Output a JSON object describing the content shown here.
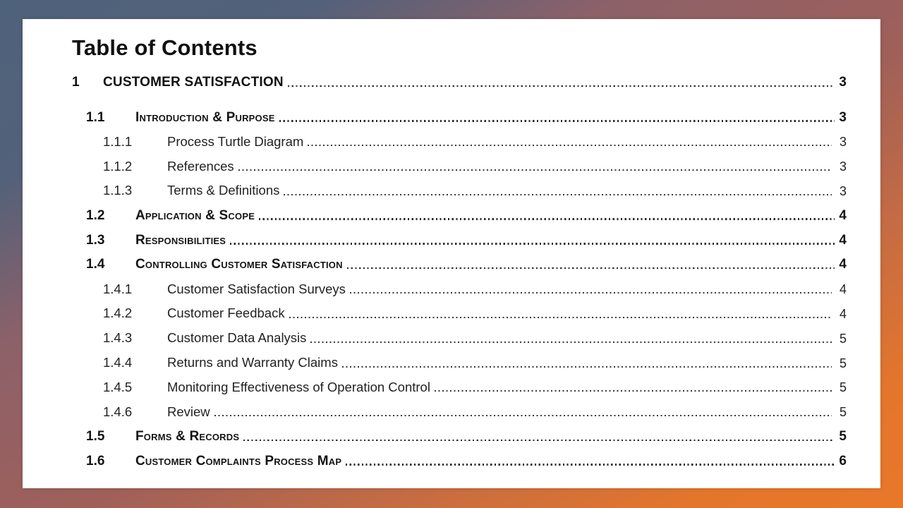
{
  "document": {
    "title": "Table of Contents",
    "entries": [
      {
        "number": "1",
        "label": "Customer Satisfaction",
        "page": "3",
        "level": 1
      },
      {
        "number": "1.1",
        "label": "Introduction & Purpose",
        "page": "3",
        "level": 2
      },
      {
        "number": "1.1.1",
        "label": "Process Turtle Diagram",
        "page": "3",
        "level": 3
      },
      {
        "number": "1.1.2",
        "label": "References",
        "page": "3",
        "level": 3
      },
      {
        "number": "1.1.3",
        "label": "Terms & Definitions",
        "page": "3",
        "level": 3
      },
      {
        "number": "1.2",
        "label": "Application & Scope",
        "page": "4",
        "level": 2
      },
      {
        "number": "1.3",
        "label": "Responsibilities",
        "page": "4",
        "level": 2
      },
      {
        "number": "1.4",
        "label": "Controlling Customer Satisfaction",
        "page": "4",
        "level": 2
      },
      {
        "number": "1.4.1",
        "label": "Customer Satisfaction Surveys",
        "page": "4",
        "level": 3
      },
      {
        "number": "1.4.2",
        "label": "Customer Feedback",
        "page": "4",
        "level": 3
      },
      {
        "number": "1.4.3",
        "label": "Customer Data Analysis",
        "page": "5",
        "level": 3
      },
      {
        "number": "1.4.4",
        "label": "Returns and Warranty Claims",
        "page": "5",
        "level": 3
      },
      {
        "number": "1.4.5",
        "label": "Monitoring Effectiveness of Operation Control",
        "page": "5",
        "level": 3
      },
      {
        "number": "1.4.6",
        "label": "Review",
        "page": "5",
        "level": 3
      },
      {
        "number": "1.5",
        "label": "Forms & Records",
        "page": "5",
        "level": 2
      },
      {
        "number": "1.6",
        "label": "Customer Complaints Process Map",
        "page": "6",
        "level": 2
      }
    ]
  },
  "colors": {
    "background_gradient_start": "#2b6681",
    "background_gradient_mid": "#a06059",
    "background_gradient_end": "#e8772a",
    "page_background": "#ffffff",
    "text": "#1a1a1a"
  }
}
